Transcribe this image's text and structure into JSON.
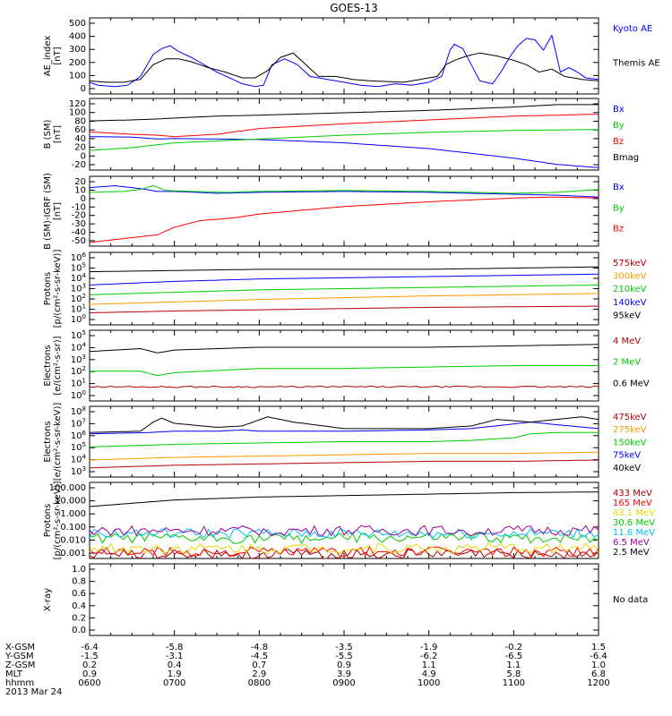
{
  "title": "GOES-13",
  "colors": {
    "black": "#000000",
    "blue": "#0000ff",
    "red": "#ff0000",
    "green": "#00cc00",
    "darkred": "#b00000",
    "orange": "#ff9900",
    "yellow": "#e6d800",
    "cyan": "#00bfff",
    "purple": "#990099"
  },
  "chart_data": [
    {
      "type": "line",
      "ylabel": "AE_index\n[nT]",
      "yticks": [
        "500",
        "400",
        "300",
        "200",
        "100",
        "0"
      ],
      "ylim": [
        0,
        520
      ],
      "series": [
        {
          "name": "Kyoto AE",
          "color": "blue",
          "x": [
            0,
            0.1,
            0.3,
            0.45,
            0.6,
            0.75,
            0.85,
            0.95,
            1.05,
            1.2,
            1.35,
            1.5,
            1.65,
            1.8,
            1.95,
            2.05,
            2.15,
            2.3,
            2.45,
            2.6,
            2.8,
            3.0,
            3.2,
            3.4,
            3.6,
            3.8,
            4.0,
            4.15,
            4.25,
            4.3,
            4.4,
            4.5,
            4.6,
            4.75,
            4.85,
            4.95,
            5.05,
            5.15,
            5.25,
            5.35,
            5.45,
            5.55,
            5.65,
            5.75,
            5.85,
            6.0
          ],
          "y": [
            80,
            60,
            50,
            60,
            120,
            270,
            310,
            330,
            290,
            250,
            200,
            150,
            110,
            70,
            50,
            60,
            200,
            240,
            200,
            120,
            100,
            80,
            60,
            50,
            70,
            60,
            80,
            120,
            300,
            340,
            310,
            200,
            90,
            70,
            150,
            250,
            330,
            380,
            370,
            300,
            400,
            150,
            180,
            150,
            110,
            100
          ]
        },
        {
          "name": "Themis AE",
          "color": "black",
          "x": [
            0,
            0.2,
            0.4,
            0.6,
            0.75,
            0.9,
            1.05,
            1.2,
            1.4,
            1.6,
            1.8,
            1.95,
            2.1,
            2.25,
            2.4,
            2.55,
            2.7,
            2.9,
            3.1,
            3.3,
            3.5,
            3.7,
            3.9,
            4.1,
            4.2,
            4.3,
            4.45,
            4.6,
            4.8,
            5.0,
            5.15,
            5.3,
            5.45,
            5.6,
            5.8,
            6.0
          ],
          "y": [
            90,
            80,
            80,
            100,
            200,
            240,
            240,
            220,
            180,
            150,
            110,
            110,
            160,
            250,
            280,
            200,
            120,
            120,
            100,
            90,
            85,
            80,
            100,
            120,
            200,
            230,
            260,
            280,
            260,
            230,
            200,
            150,
            170,
            120,
            100,
            90
          ]
        }
      ]
    },
    {
      "type": "line",
      "ylabel": "B (SM)\n[nT]",
      "yticks": [
        "120",
        "100",
        "80",
        "60",
        "40",
        "20",
        "0",
        "-20"
      ],
      "ylim": [
        -25,
        125
      ],
      "series": [
        {
          "name": "Bx",
          "color": "blue",
          "x": [
            0,
            0.5,
            0.8,
            1,
            2,
            3,
            4,
            5,
            5.5,
            6
          ],
          "y": [
            45,
            44,
            40,
            41,
            39,
            32,
            20,
            0,
            -13,
            -20
          ]
        },
        {
          "name": "By",
          "color": "green",
          "x": [
            0,
            0.5,
            0.8,
            1,
            2,
            3,
            4,
            5,
            6
          ],
          "y": [
            16,
            22,
            28,
            32,
            40,
            48,
            54,
            58,
            60
          ]
        },
        {
          "name": "Bz",
          "color": "red",
          "x": [
            0,
            0.5,
            0.8,
            1,
            1.5,
            2,
            3,
            4,
            5,
            6
          ],
          "y": [
            55,
            50,
            48,
            45,
            50,
            62,
            72,
            80,
            88,
            92
          ]
        },
        {
          "name": "Bmag",
          "color": "black",
          "x": [
            0,
            0.5,
            0.8,
            1,
            1.5,
            2,
            3,
            4,
            5,
            5.5,
            6
          ],
          "y": [
            78,
            80,
            82,
            84,
            88,
            90,
            95,
            100,
            107,
            112,
            112
          ]
        }
      ]
    },
    {
      "type": "line",
      "ylabel": "B (SM)-IGRF (SM)\n[nT]",
      "yticks": [
        "20",
        "10",
        "0",
        "-10",
        "-20",
        "-30",
        "-40",
        "-50"
      ],
      "ylim": [
        -52,
        22
      ],
      "series": [
        {
          "name": "Bx",
          "color": "blue",
          "x": [
            0,
            0.3,
            0.6,
            0.8,
            1,
            1.5,
            2,
            3,
            4,
            5,
            5.5,
            6
          ],
          "y": [
            10,
            12,
            9,
            6,
            6,
            4,
            5,
            6,
            5,
            3,
            2,
            0
          ]
        },
        {
          "name": "By",
          "color": "green",
          "x": [
            0,
            0.4,
            0.6,
            0.75,
            0.9,
            1.2,
            1.6,
            2,
            3,
            4,
            5,
            5.5,
            6
          ],
          "y": [
            5,
            6,
            8,
            12,
            7,
            6,
            5,
            6,
            7,
            6,
            4,
            5,
            8
          ]
        },
        {
          "name": "Bz",
          "color": "red",
          "x": [
            0,
            0.4,
            0.8,
            1,
            1.3,
            1.7,
            2,
            3,
            4,
            5,
            5.5,
            6
          ],
          "y": [
            -48,
            -44,
            -40,
            -32,
            -25,
            -22,
            -18,
            -10,
            -5,
            -1,
            0,
            -1
          ]
        }
      ]
    },
    {
      "type": "line",
      "log": true,
      "ylabel": "Protons\n[p/(cm²-s-sr-keV)]",
      "yticks": [
        "10^6",
        "10^5",
        "10^4",
        "10^3",
        "10^2",
        "10^1",
        "10^0"
      ],
      "ylim": [
        0,
        6
      ],
      "series": [
        {
          "name": "575keV",
          "color": "darkred",
          "x": [
            0,
            1,
            2,
            3,
            4,
            5,
            6
          ],
          "y": [
            1.0,
            1.15,
            1.25,
            1.35,
            1.45,
            1.5,
            1.55
          ]
        },
        {
          "name": "300keV",
          "color": "orange",
          "x": [
            0,
            1,
            2,
            3,
            4,
            5,
            6
          ],
          "y": [
            1.7,
            1.9,
            2.1,
            2.25,
            2.4,
            2.5,
            2.6
          ]
        },
        {
          "name": "210keV",
          "color": "green",
          "x": [
            0,
            1,
            2,
            3,
            4,
            5,
            6
          ],
          "y": [
            2.5,
            2.7,
            2.9,
            3.0,
            3.1,
            3.2,
            3.3
          ]
        },
        {
          "name": "140keV",
          "color": "blue",
          "x": [
            0,
            1,
            2,
            3,
            4,
            5,
            6
          ],
          "y": [
            3.3,
            3.6,
            3.8,
            3.9,
            4.0,
            4.1,
            4.2
          ]
        },
        {
          "name": "95keV",
          "color": "black",
          "x": [
            0,
            1,
            2,
            3,
            4,
            5,
            6
          ],
          "y": [
            4.4,
            4.5,
            4.6,
            4.6,
            4.6,
            4.7,
            4.8
          ]
        }
      ]
    },
    {
      "type": "line",
      "log": true,
      "ylabel": "Electrons\n[e/(cm²-s-sr)]",
      "yticks": [
        "10^5",
        "10^4",
        "10^3",
        "10^2",
        "10^1",
        "10^0"
      ],
      "ylim": [
        0,
        5
      ],
      "series": [
        {
          "name": "4 MeV",
          "color": "darkred",
          "x": [
            0,
            1,
            2,
            3,
            4,
            5,
            6
          ],
          "y": [
            1.0,
            1.0,
            1.0,
            1.0,
            1.0,
            1.0,
            1.0
          ]
        },
        {
          "name": "2 MeV",
          "color": "green",
          "x": [
            0,
            0.6,
            0.8,
            1,
            2,
            3,
            4,
            5,
            6
          ],
          "y": [
            2.1,
            2.1,
            1.8,
            2.0,
            2.3,
            2.3,
            2.4,
            2.5,
            2.5
          ]
        },
        {
          "name": "0.6 MeV",
          "color": "black",
          "x": [
            0,
            0.6,
            0.8,
            1,
            2,
            3,
            4,
            5,
            6
          ],
          "y": [
            3.5,
            3.7,
            3.4,
            3.6,
            3.8,
            3.8,
            3.8,
            3.9,
            4.0
          ]
        }
      ]
    },
    {
      "type": "line",
      "log": true,
      "ylabel": "Electrons\n[e/(cm²-s-sr-keV)]",
      "yticks": [
        "10^8",
        "10^7",
        "10^6",
        "10^5",
        "10^4",
        "10^3"
      ],
      "ylim": [
        2.6,
        8
      ],
      "series": [
        {
          "name": "475keV",
          "color": "darkred",
          "x": [
            0,
            1,
            2,
            3,
            4,
            5,
            6
          ],
          "y": [
            3.3,
            3.5,
            3.6,
            3.7,
            3.8,
            3.8,
            3.9
          ]
        },
        {
          "name": "275keV",
          "color": "orange",
          "x": [
            0,
            1,
            2,
            3,
            4,
            5,
            6
          ],
          "y": [
            3.9,
            4.1,
            4.2,
            4.3,
            4.4,
            4.4,
            4.5
          ]
        },
        {
          "name": "150keV",
          "color": "green",
          "x": [
            0,
            1,
            2,
            3,
            4,
            4.5,
            5,
            5.2,
            5.5,
            6
          ],
          "y": [
            4.9,
            5.1,
            5.2,
            5.3,
            5.3,
            5.4,
            5.6,
            5.9,
            6.0,
            6.0
          ]
        },
        {
          "name": "75keV",
          "color": "blue",
          "x": [
            0,
            0.7,
            1,
            1.5,
            1.8,
            2,
            3,
            4,
            4.5,
            5.2,
            5.5,
            6
          ],
          "y": [
            5.9,
            6.0,
            6.1,
            6.1,
            6.2,
            6.1,
            6.1,
            6.2,
            6.3,
            6.8,
            6.6,
            6.3
          ]
        },
        {
          "name": "40keV",
          "color": "black",
          "x": [
            0,
            0.6,
            0.75,
            0.85,
            1.0,
            1.5,
            1.8,
            2.1,
            2.4,
            3,
            4,
            4.5,
            4.8,
            5.2,
            5.5,
            5.8,
            6
          ],
          "y": [
            6.0,
            6.1,
            6.8,
            7.1,
            6.7,
            6.4,
            6.5,
            7.2,
            6.8,
            6.3,
            6.3,
            6.5,
            7.0,
            6.8,
            7.0,
            7.2,
            7.0
          ]
        }
      ]
    },
    {
      "type": "line",
      "log": true,
      "ylabel": "Protons\n[p/(cm²-s-sr-keV)]",
      "yticks": [
        "100.000",
        "10.000",
        "1.000",
        "0.100",
        "0.010",
        "0.001"
      ],
      "ylim": [
        -3.2,
        2
      ],
      "series": [
        {
          "name": "433 MeV",
          "color": "darkred",
          "x": [
            0,
            6
          ],
          "y": [
            -2.9,
            -2.9
          ]
        },
        {
          "name": "165 MeV",
          "color": "red",
          "x": [
            0,
            6
          ],
          "y": [
            -2.75,
            -2.75
          ]
        },
        {
          "name": "63.1 MeV",
          "color": "yellow",
          "x": [
            0,
            6
          ],
          "y": [
            -2.5,
            -2.5
          ]
        },
        {
          "name": "30.6 MeV",
          "color": "green",
          "x": [
            0,
            6
          ],
          "y": [
            -1.85,
            -1.8
          ]
        },
        {
          "name": "11.6 MeV",
          "color": "cyan",
          "x": [
            0,
            6
          ],
          "y": [
            -1.5,
            -1.5
          ]
        },
        {
          "name": "6.5 MeV",
          "color": "purple",
          "x": [
            0,
            6
          ],
          "y": [
            -1.3,
            -1.3
          ]
        },
        {
          "name": "2.5 MeV",
          "color": "black",
          "x": [
            0,
            1,
            2,
            3,
            4,
            5,
            6
          ],
          "y": [
            0.35,
            0.8,
            1.0,
            1.1,
            1.2,
            1.3,
            1.35
          ]
        }
      ]
    },
    {
      "type": "line",
      "ylabel": "X-ray",
      "yticks": [
        "1.0",
        "0.8",
        "0.6",
        "0.4",
        "0.2",
        "0.0"
      ],
      "ylim": [
        0,
        1
      ],
      "nodata": "No data",
      "series": []
    }
  ],
  "orbit": {
    "labels": [
      "X-GSM",
      "Y-GSM",
      "Z-GSM",
      "MLT",
      "hhmm"
    ],
    "rows": [
      [
        "-6.4",
        "-5.8",
        "-4.8",
        "-3.5",
        "-1.9",
        "-0.2",
        "1.5"
      ],
      [
        "-1.5",
        "-3.1",
        "-4.5",
        "-5.5",
        "-6.2",
        "-6.5",
        "-6.4"
      ],
      [
        "0.2",
        "0.4",
        "0.7",
        "0.9",
        "1.1",
        "1.1",
        "1.0"
      ],
      [
        "0.9",
        "1.9",
        "2.9",
        "3.9",
        "4.9",
        "5.8",
        "6.8"
      ],
      [
        "0600",
        "0700",
        "0800",
        "0900",
        "1000",
        "1100",
        "1200"
      ]
    ],
    "date": "2013 Mar 24"
  }
}
